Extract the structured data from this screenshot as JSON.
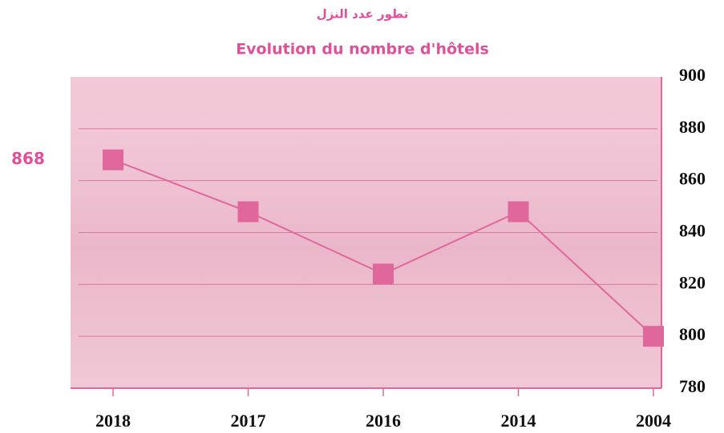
{
  "chart_data": {
    "type": "line",
    "title": "Evolution du nombre d'hôtels",
    "subtitle": "تطور عدد النزل",
    "categories": [
      "2018",
      "2017",
      "2016",
      "2014",
      "2004"
    ],
    "values": [
      868,
      848,
      824,
      848,
      800
    ],
    "color": "#e0679b",
    "ylim": [
      780,
      900
    ],
    "yticks": [
      780,
      800,
      820,
      840,
      860,
      880,
      900
    ],
    "grid": true,
    "y_axis_side": "right"
  }
}
